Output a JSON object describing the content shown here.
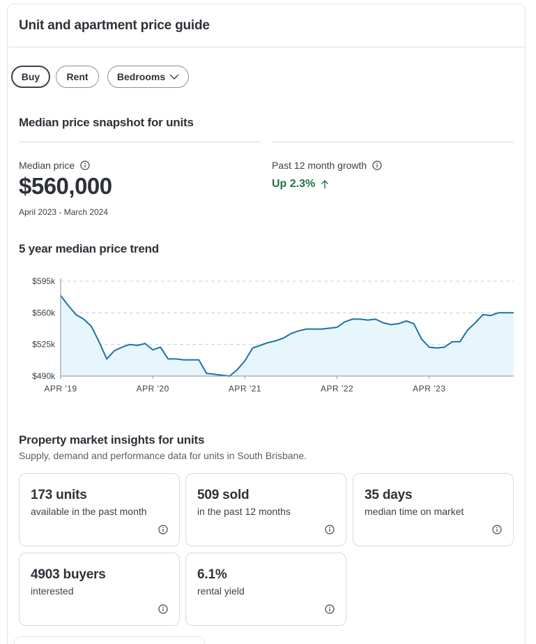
{
  "card": {
    "title": "Unit and apartment price guide"
  },
  "filters": {
    "buy": "Buy",
    "rent": "Rent",
    "bedrooms": "Bedrooms"
  },
  "snapshot": {
    "title": "Median price snapshot for units",
    "median_label": "Median price",
    "median_value": "$560,000",
    "period": "April 2023 - March 2024",
    "growth_label": "Past 12 month growth",
    "growth_value": "Up 2.3%",
    "growth_color": "#237046"
  },
  "trend": {
    "title": "5 year median price trend"
  },
  "chart_data": {
    "type": "area",
    "title": "5 year median price trend",
    "xlabel": "",
    "ylabel": "",
    "y_ticks": [
      "$490k",
      "$525k",
      "$560k",
      "$595k"
    ],
    "x_ticks": [
      "APR '19",
      "APR '20",
      "APR '21",
      "APR '22",
      "APR '23"
    ],
    "x_tick_values": [
      "2019-04",
      "2020-04",
      "2021-04",
      "2022-04",
      "2023-04"
    ],
    "ylim": [
      490000,
      595000
    ],
    "xlim": [
      "2019-04",
      "2024-03"
    ],
    "grid": true,
    "line_color": "#1a73a8",
    "fill_color": "#e7f6fc",
    "series": [
      {
        "x": [
          "2019-04",
          "2019-05",
          "2019-06",
          "2019-07",
          "2019-08",
          "2019-09",
          "2019-10",
          "2019-11",
          "2019-12",
          "2020-01",
          "2020-02",
          "2020-03",
          "2020-04",
          "2020-05",
          "2020-06",
          "2020-07",
          "2020-08",
          "2020-09",
          "2020-10",
          "2020-11",
          "2020-12",
          "2021-01",
          "2021-02",
          "2021-03",
          "2021-04",
          "2021-05",
          "2021-06",
          "2021-07",
          "2021-08",
          "2021-09",
          "2021-10",
          "2021-11",
          "2021-12",
          "2022-01",
          "2022-02",
          "2022-03",
          "2022-04",
          "2022-05",
          "2022-06",
          "2022-07",
          "2022-08",
          "2022-09",
          "2022-10",
          "2022-11",
          "2022-12",
          "2023-01",
          "2023-02",
          "2023-03",
          "2023-04",
          "2023-05",
          "2023-06",
          "2023-07",
          "2023-08",
          "2023-09",
          "2023-10",
          "2023-11",
          "2023-12",
          "2024-01",
          "2024-02",
          "2024-03"
        ],
        "values": [
          579000,
          568000,
          558000,
          553000,
          545000,
          528000,
          509000,
          518000,
          522000,
          525000,
          524000,
          526000,
          519000,
          522000,
          509000,
          509000,
          508000,
          508000,
          508000,
          493000,
          492000,
          491000,
          490000,
          497000,
          507000,
          521000,
          524000,
          527000,
          529000,
          532000,
          537000,
          540000,
          542000,
          542000,
          542000,
          543000,
          544000,
          550000,
          553000,
          553000,
          552000,
          553000,
          549000,
          547000,
          548000,
          551000,
          548000,
          531000,
          522000,
          521000,
          522000,
          528000,
          528000,
          541000,
          549000,
          558000,
          557000,
          560000,
          560000,
          560000
        ]
      }
    ]
  },
  "insights": {
    "title": "Property market insights for units",
    "subtitle": "Supply, demand and performance data for units in South Brisbane.",
    "tiles": [
      {
        "value": "173 units",
        "desc": "available in the past month"
      },
      {
        "value": "509 sold",
        "desc": "in the past 12 months"
      },
      {
        "value": "35 days",
        "desc": "median time on market"
      },
      {
        "value": "4903 buyers",
        "desc": "interested"
      },
      {
        "value": "6.1%",
        "desc": "rental yield"
      }
    ]
  }
}
